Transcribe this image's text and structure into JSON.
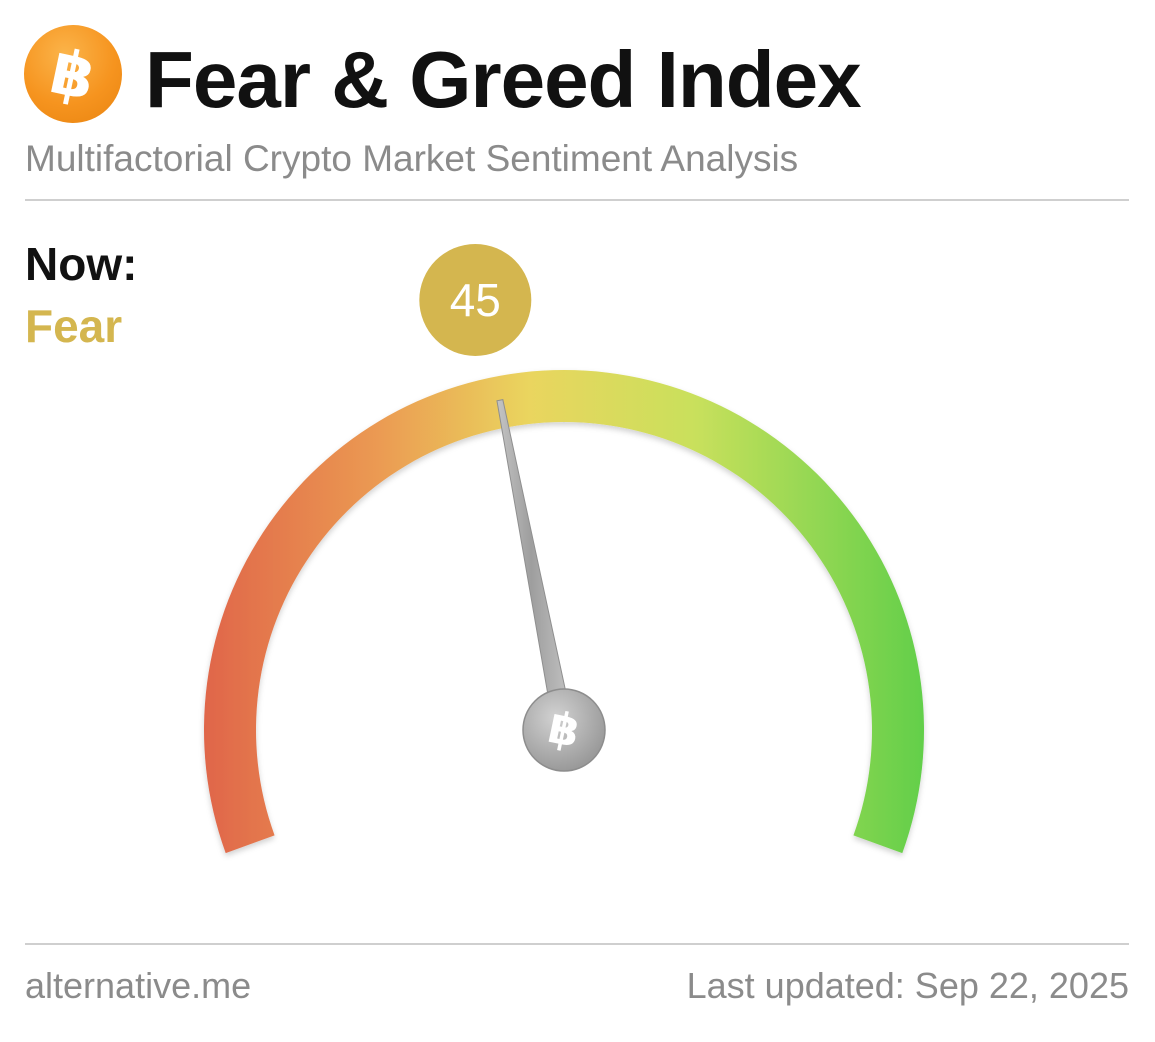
{
  "header": {
    "logo_glyph": "฿",
    "logo_icon": "bitcoin-icon",
    "title": "Fear & Greed Index",
    "subtitle": "Multifactorial Crypto Market Sentiment Analysis"
  },
  "now": {
    "label": "Now:",
    "classification": "Fear",
    "value": "45"
  },
  "gauge": {
    "value": 45,
    "min": 0,
    "max": 100,
    "hub_glyph": "฿",
    "hub_icon": "bitcoin-icon",
    "colors": {
      "low": "#e0664a",
      "mid": "#ead55e",
      "high": "#62cf4a",
      "badge": "#d4b64f",
      "needle": "#a9a9a9"
    }
  },
  "footer": {
    "source": "alternative.me",
    "updated": "Last updated: Sep 22, 2025"
  }
}
